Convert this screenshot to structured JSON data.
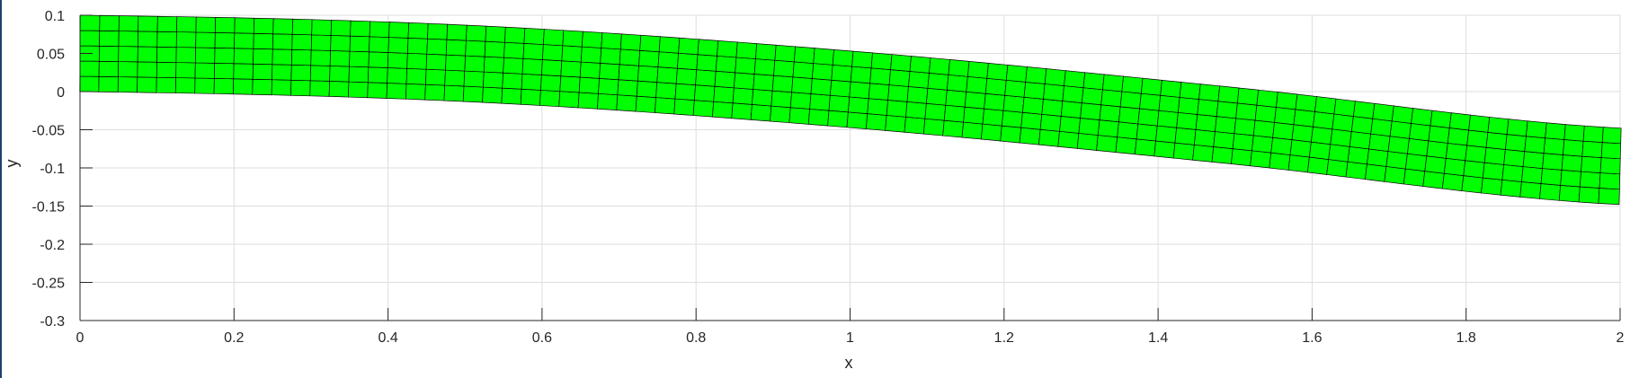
{
  "chart_data": {
    "type": "mesh",
    "title": "",
    "xlabel": "x",
    "ylabel": "y",
    "xlim": [
      0,
      2
    ],
    "ylim": [
      -0.3,
      0.1
    ],
    "xticks": [
      0,
      0.2,
      0.4,
      0.6,
      0.8,
      1,
      1.2,
      1.4,
      1.6,
      1.8,
      2
    ],
    "yticks": [
      -0.3,
      -0.25,
      -0.2,
      -0.15,
      -0.1,
      -0.05,
      0,
      0.05,
      0.1
    ],
    "xtick_labels": [
      "0",
      "0.2",
      "0.4",
      "0.6",
      "0.8",
      "1",
      "1.2",
      "1.4",
      "1.6",
      "1.8",
      "2"
    ],
    "ytick_labels": [
      "-0.3",
      "-0.25",
      "-0.2",
      "-0.15",
      "-0.1",
      "-0.05",
      "0",
      "0.05",
      "0.1"
    ],
    "grid": true,
    "mesh": {
      "elements_x": 80,
      "elements_y": 5,
      "beam_length": 2,
      "beam_height": 0.1,
      "tip_deflection": -0.148,
      "deflection_shape": [
        {
          "x": 0,
          "dy": 0
        },
        {
          "x": 0.5,
          "dy": -0.013
        },
        {
          "x": 1.0,
          "dy": -0.047
        },
        {
          "x": 1.5,
          "dy": -0.095
        },
        {
          "x": 2.0,
          "dy": -0.148
        }
      ]
    },
    "colors": {
      "fill": "#00ff00",
      "edge": "#000000",
      "grid": "#dedede",
      "axis": "#262626"
    }
  }
}
